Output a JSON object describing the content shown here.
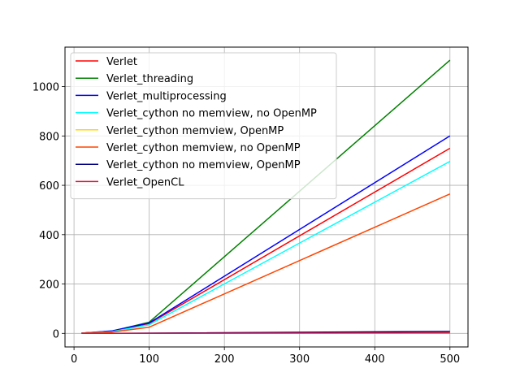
{
  "chart_data": {
    "type": "line",
    "title": "",
    "xlabel": "",
    "ylabel": "",
    "xlim": [
      -12,
      524
    ],
    "ylim": [
      -55,
      1160
    ],
    "xticks": [
      0,
      100,
      200,
      300,
      400,
      500
    ],
    "yticks": [
      0,
      200,
      400,
      600,
      800,
      1000
    ],
    "grid": true,
    "legend_position": "top-left",
    "x": [
      10,
      50,
      100,
      500
    ],
    "series": [
      {
        "name": "Verlet",
        "color": "#ff0000",
        "values": [
          1,
          8,
          40,
          750
        ]
      },
      {
        "name": "Verlet_threading",
        "color": "#008000",
        "values": [
          1,
          9,
          45,
          1107
        ]
      },
      {
        "name": "Verlet_multiprocessing",
        "color": "#0000ff",
        "values": [
          1,
          10,
          42,
          800
        ]
      },
      {
        "name": "Verlet_cython no memview, no OpenMP",
        "color": "#00ffff",
        "values": [
          1,
          7,
          35,
          697
        ]
      },
      {
        "name": "Verlet_cython memview, OpenMP",
        "color": "#ffd700",
        "values": [
          0,
          0.2,
          0.4,
          3
        ]
      },
      {
        "name": "Verlet_cython memview, no OpenMP",
        "color": "#ff4500",
        "values": [
          1,
          5,
          25,
          565
        ]
      },
      {
        "name": "Verlet_cython no memview, OpenMP",
        "color": "#000080",
        "values": [
          0,
          0.4,
          0.9,
          8
        ]
      },
      {
        "name": "Verlet_OpenCL",
        "color": "#dc143c",
        "values": [
          0,
          0.2,
          0.3,
          2
        ]
      }
    ]
  }
}
